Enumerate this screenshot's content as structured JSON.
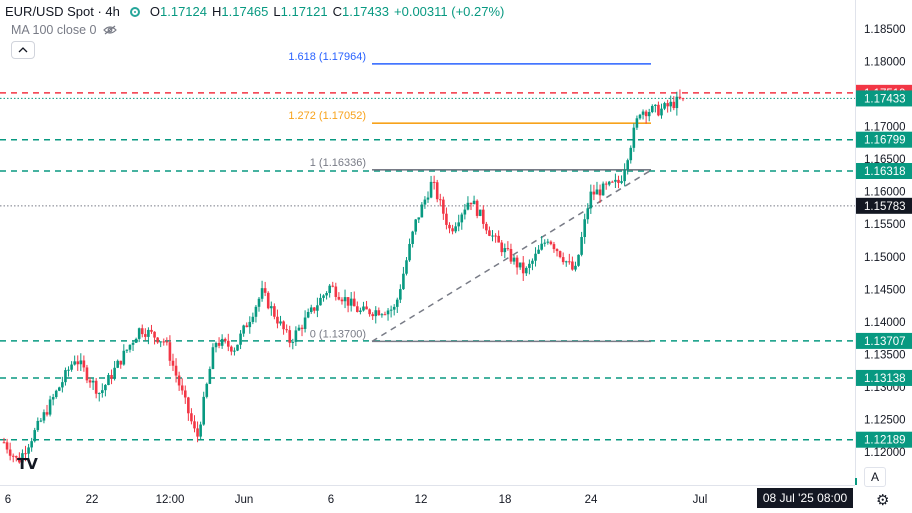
{
  "header": {
    "symbol": "EUR/USD Spot · 4h",
    "o_label": "O",
    "o_value": "1.17124",
    "h_label": "H",
    "h_value": "1.17465",
    "l_label": "L",
    "l_value": "1.17121",
    "c_label": "C",
    "c_value": "1.17433",
    "change": "+0.00311 (+0.27%)"
  },
  "indicator": {
    "label": "MA 100 close 0"
  },
  "buttons": {
    "scale_mode": "A"
  },
  "time_axis": {
    "ticks": [
      "6",
      "22",
      "12:00",
      "Jun",
      "6",
      "12",
      "18",
      "24",
      "Jul"
    ],
    "crosshair_label": "08 Jul '25   08:00"
  },
  "colors": {
    "up": "#089981",
    "down": "#f23645",
    "fib_blue": "#2962ff",
    "fib_orange": "#f7a21b",
    "fib_grey": "#787b86",
    "support": "#089981",
    "resistance": "#f23645",
    "price_tag": "#131722"
  },
  "chart_data": {
    "type": "candlestick",
    "symbol": "EUR/USD",
    "timeframe": "4h",
    "y_axis": {
      "position": "right",
      "ticks": [
        "1.18500",
        "1.18000",
        "1.17500",
        "1.17000",
        "1.16500",
        "1.16000",
        "1.15500",
        "1.15000",
        "1.14500",
        "1.14000",
        "1.13500",
        "1.13000",
        "1.12500",
        "1.12000"
      ],
      "ylim": [
        1.1173,
        1.1893
      ]
    },
    "fib_levels": [
      {
        "label": "1.618 (1.17964)",
        "value": 1.17964,
        "color": "#2962ff"
      },
      {
        "label": "1.272 (1.17052)",
        "value": 1.17052,
        "color": "#f7a21b"
      },
      {
        "label": "1 (1.16336)",
        "value": 1.16336,
        "color": "#787b86"
      },
      {
        "label": "0 (1.13700)",
        "value": 1.137,
        "color": "#787b86"
      }
    ],
    "horizontal_lines": [
      {
        "label": "1.17519",
        "value": 1.17519,
        "style": "dashed",
        "color": "#f23645",
        "tag_color": "#f23645"
      },
      {
        "label": "1.17433",
        "value": 1.17433,
        "style": "dotted",
        "color": "#089981",
        "tag_color": "#089981"
      },
      {
        "label": "1.16799",
        "value": 1.16799,
        "style": "dashed",
        "color": "#089981",
        "tag_color": "#089981"
      },
      {
        "label": "1.16318",
        "value": 1.16318,
        "style": "dashed",
        "color": "#089981",
        "tag_color": "#089981"
      },
      {
        "label": "1.15783",
        "value": 1.15783,
        "style": "dotted",
        "color": "#787b86",
        "tag_color": "#131722"
      },
      {
        "label": "1.13707",
        "value": 1.13707,
        "style": "dashed",
        "color": "#089981",
        "tag_color": "#089981"
      },
      {
        "label": "1.13138",
        "value": 1.13138,
        "style": "dashed",
        "color": "#089981",
        "tag_color": "#089981"
      },
      {
        "label": "1.12189",
        "value": 1.12189,
        "style": "dashed",
        "color": "#089981",
        "tag_color": "#089981"
      }
    ],
    "trendline": {
      "from": 1.137,
      "to": 1.1633,
      "style": "dashed",
      "color": "#787b86"
    },
    "anchors": [
      {
        "tick": "6",
        "price": 1.121
      },
      {
        "tick": "22",
        "price": 1.129
      },
      {
        "tick": "12:00",
        "price": 1.137
      },
      {
        "tick": "Jun",
        "price": 1.1365
      },
      {
        "tick": "6",
        "price": 1.1425
      },
      {
        "tick": "12",
        "price": 1.158
      },
      {
        "tick": "18",
        "price": 1.152
      },
      {
        "tick": "24",
        "price": 1.16
      },
      {
        "tick": "Jul",
        "price": 1.1743
      }
    ],
    "candles_total": 222,
    "last_close": 1.17433
  }
}
